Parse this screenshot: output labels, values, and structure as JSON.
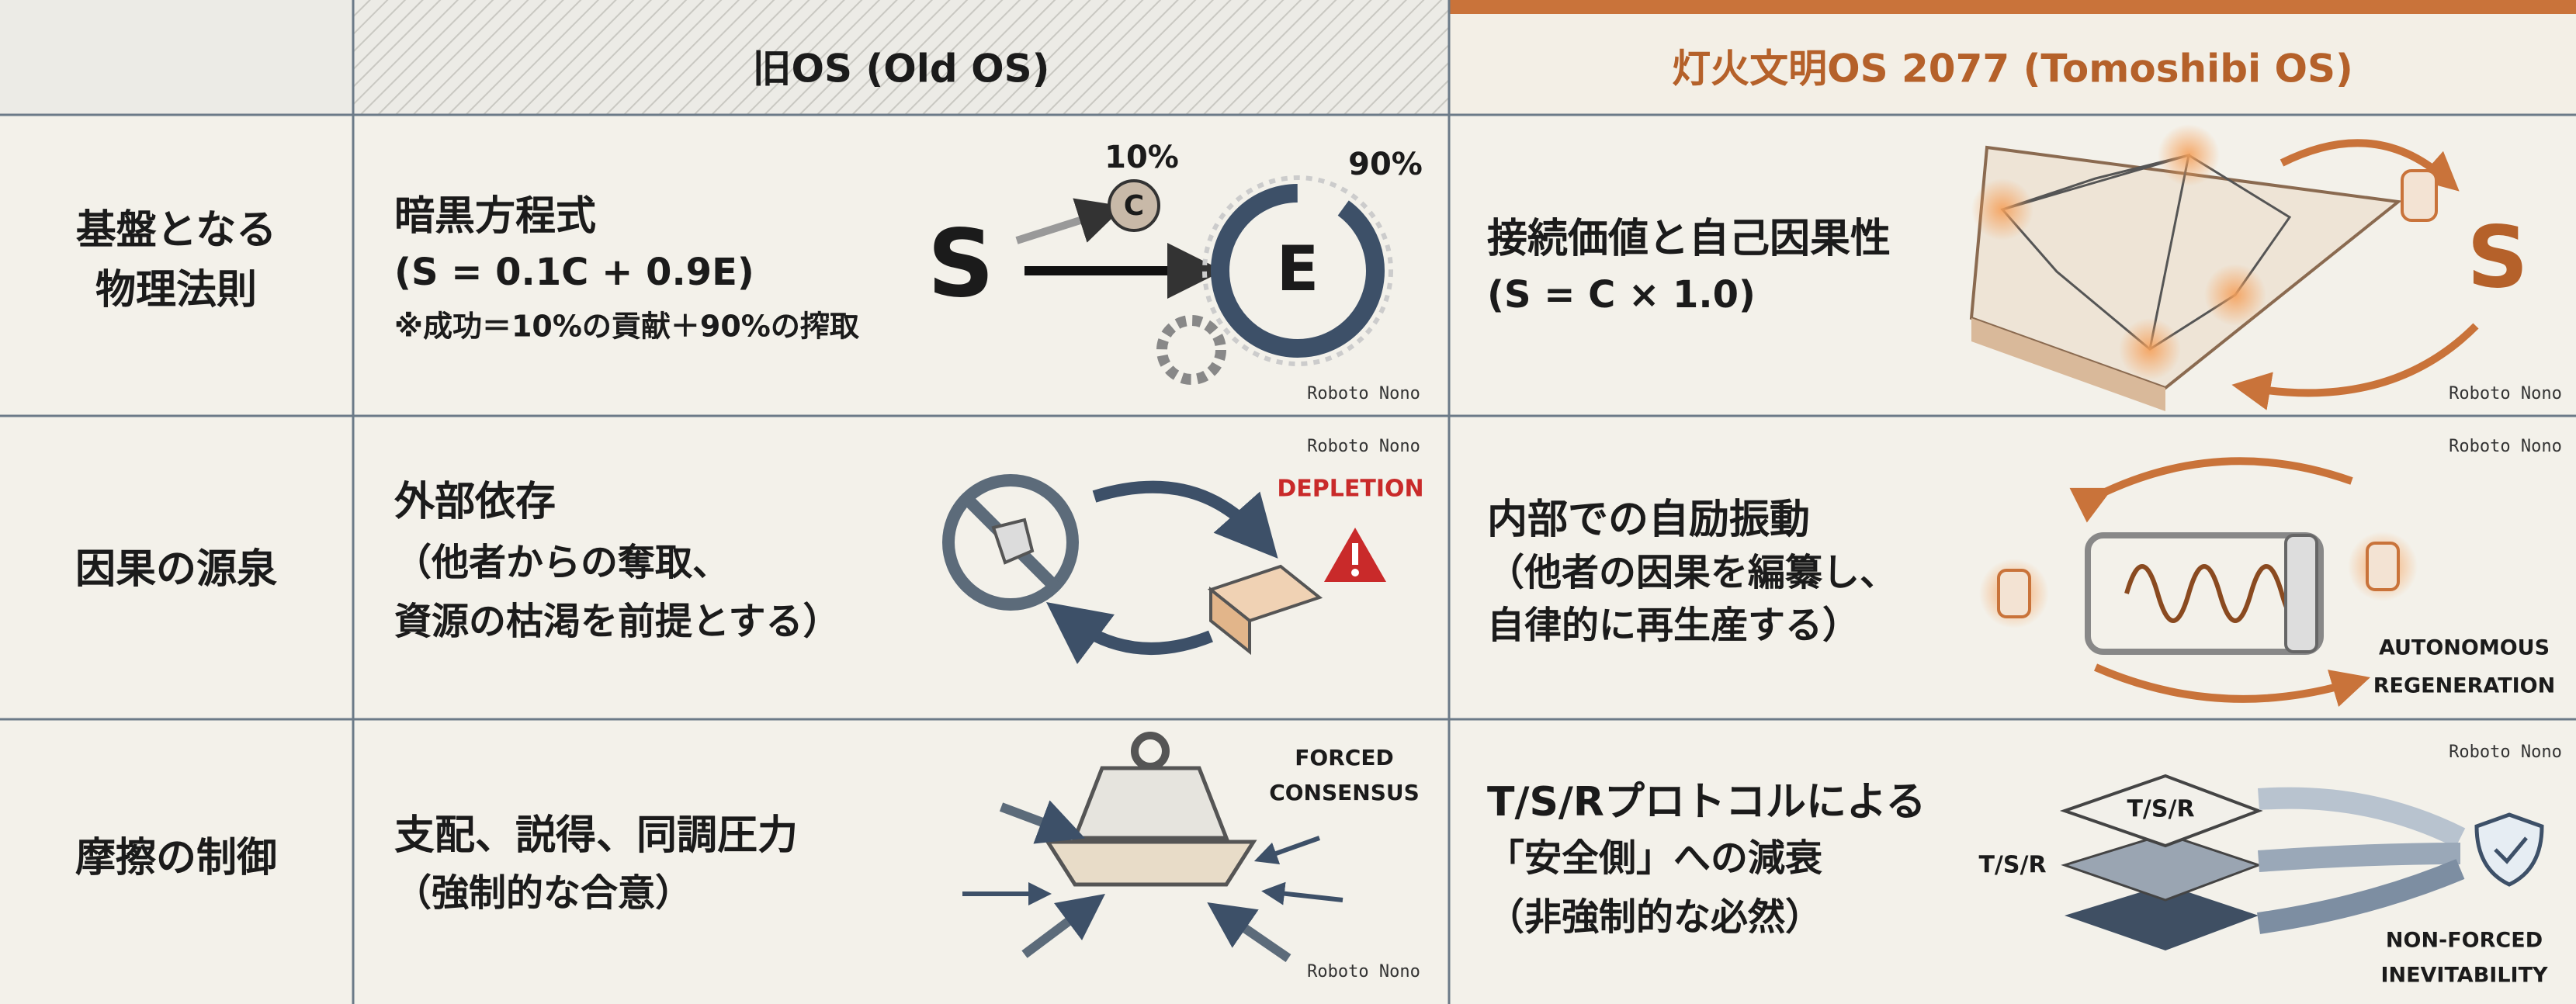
{
  "header": {
    "columns": [
      "旧OS (Old OS)",
      "灯火文明OS 2077 (Tomoshibi OS)"
    ]
  },
  "rows": [
    {
      "label": [
        "基盤となる",
        "物理法則"
      ],
      "old": {
        "text": [
          "暗黒方程式",
          "(S = 0.1C + 0.9E)",
          "※成功＝10%の貢献＋90%の搾取"
        ],
        "figure": [
          "10%",
          "90%",
          "S",
          "C",
          "E",
          "Roboto Nono"
        ]
      },
      "new": {
        "text": [
          "接続価値と自己因果性",
          "(S = C × 1.0)"
        ],
        "figure": [
          "S",
          "Roboto Nono"
        ]
      }
    },
    {
      "label": [
        "因果の源泉"
      ],
      "old": {
        "text": [
          "外部依存",
          "（他者からの奪取、",
          "資源の枯渇を前提とする）"
        ],
        "figure": [
          "Roboto Nono",
          "DEPLETION"
        ]
      },
      "new": {
        "text": [
          "内部での自励振動",
          "（他者の因果を編纂し、",
          "自律的に再生産する）"
        ],
        "figure": [
          "Roboto Nono",
          "AUTONOMOUS",
          "REGENERATION"
        ]
      }
    },
    {
      "label": [
        "摩擦の制御"
      ],
      "old": {
        "text": [
          "支配、説得、同調圧力",
          "（強制的な合意）"
        ],
        "figure": [
          "FORCED",
          "CONSENSUS",
          "Roboto Nono"
        ]
      },
      "new": {
        "text": [
          "T/S/Rプロトコルによる",
          "「安全側」への減衰",
          "（非強制的な必然）"
        ],
        "figure": [
          "Roboto Nono",
          "T/S/R",
          "T/S/R",
          "NON-FORCED",
          "INEVITABILITY"
        ]
      }
    }
  ]
}
